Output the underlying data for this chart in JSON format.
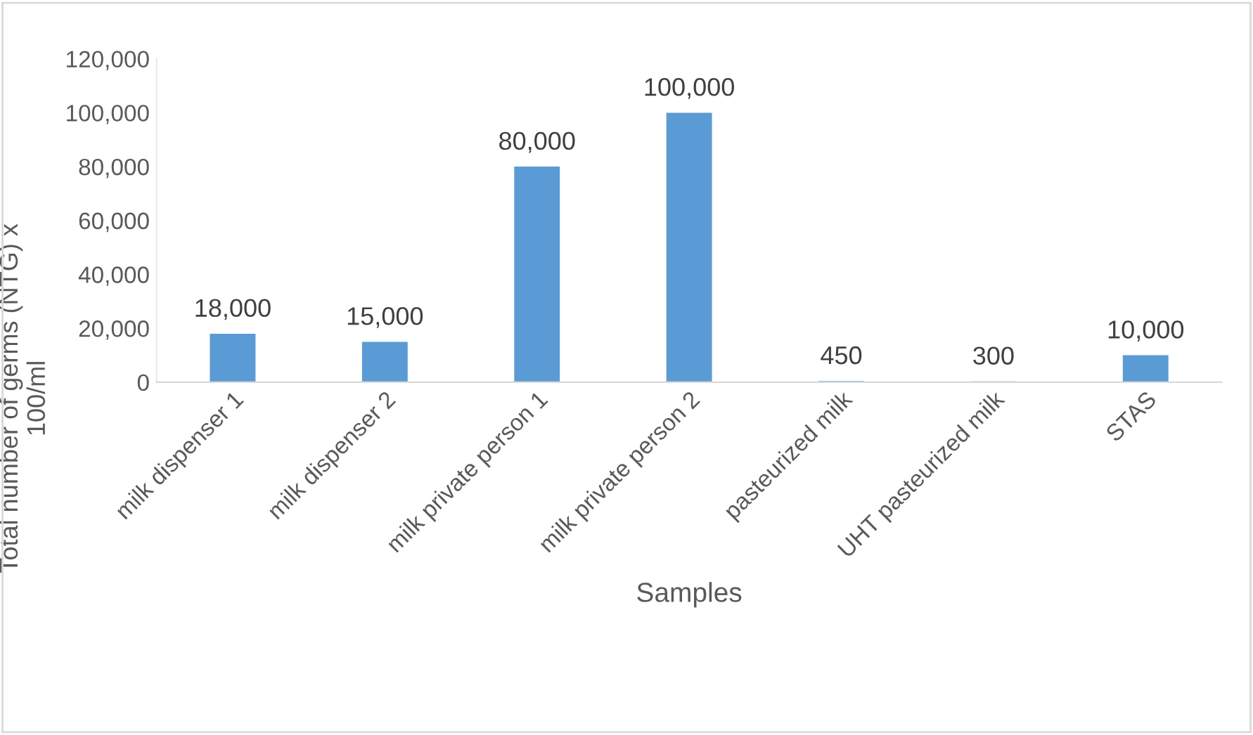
{
  "chart_data": {
    "type": "bar",
    "xlabel": "Samples",
    "ylabel": "Total number of germs (NTG) x\n100/ml",
    "categories": [
      "milk dispenser 1",
      "milk dispenser 2",
      "milk private person 1",
      "milk private person 2",
      "pasteurized milk",
      "UHT pasteurized milk",
      "STAS"
    ],
    "values": [
      18000,
      15000,
      80000,
      100000,
      450,
      300,
      10000
    ],
    "value_labels": [
      "18,000",
      "15,000",
      "80,000",
      "100,000",
      "450",
      "300",
      "10,000"
    ],
    "color": "#5b9bd5",
    "ylim": [
      0,
      120000
    ],
    "yticks": [
      {
        "value": 0,
        "label": "0"
      },
      {
        "value": 20000,
        "label": "20,000"
      },
      {
        "value": 40000,
        "label": "40,000"
      },
      {
        "value": 60000,
        "label": "60,000"
      },
      {
        "value": 80000,
        "label": "80,000"
      },
      {
        "value": 100000,
        "label": "100,000"
      },
      {
        "value": 120000,
        "label": "120,000"
      }
    ],
    "grid": false,
    "legend": false
  }
}
